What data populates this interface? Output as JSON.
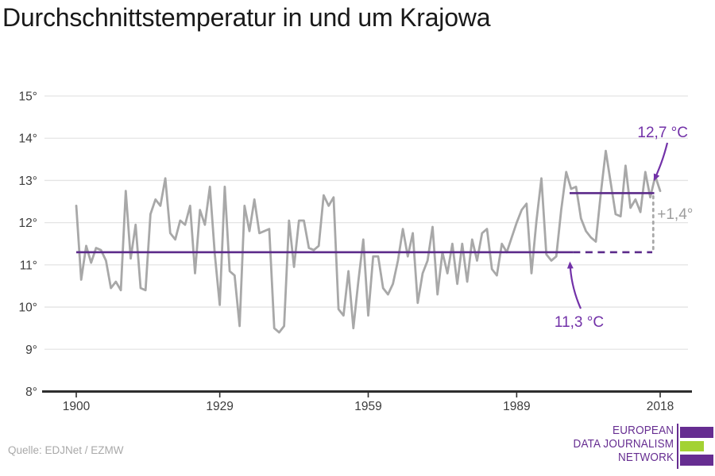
{
  "title": "Durchschnittstemperatur in und um Krajowa",
  "source": "Quelle: EDJNet / EZMW",
  "logo": {
    "line1": "EUROPEAN",
    "line2": "DATA JOURNALISM",
    "line3": "NETWORK"
  },
  "colors": {
    "series_line": "#a8a8a8",
    "mean_line": "#5b2a8a",
    "annotation_text": "#7231a8",
    "delta_text": "#9d9d9d",
    "delta_connector": "#a8a8a8",
    "grid": "#e4e4e4",
    "axis": "#2e2e2e",
    "tick_text": "#3c3c3c",
    "title_text": "#191919",
    "source_text": "#a9a9a9",
    "logo_purple": "#662d91",
    "logo_green": "#a3d233"
  },
  "chart_data": {
    "type": "line",
    "title": "Durchschnittstemperatur in und um Krajowa",
    "xlabel": "",
    "ylabel": "",
    "unit": "°C",
    "grid": "horizontal",
    "legend_position": "none",
    "ylim": [
      8,
      15
    ],
    "x_start_year": 1900,
    "x_end_year": 2018,
    "x_tick_years": [
      1900,
      1929,
      1959,
      1989,
      2018
    ],
    "x_tick_labels": [
      "1900",
      "1929",
      "1959",
      "1989",
      "2018"
    ],
    "y_tick_values": [
      15,
      14,
      13,
      12,
      11,
      10,
      9,
      8
    ],
    "y_tick_labels": [
      "15°",
      "14°",
      "13°",
      "12°",
      "11°",
      "10°",
      "9°",
      "8°"
    ],
    "values": [
      12.4,
      10.65,
      11.45,
      11.05,
      11.4,
      11.35,
      11.1,
      10.45,
      10.6,
      10.4,
      12.75,
      11.15,
      11.95,
      10.45,
      10.4,
      12.2,
      12.55,
      12.4,
      13.05,
      11.75,
      11.6,
      12.05,
      11.95,
      12.4,
      10.8,
      12.3,
      11.95,
      12.85,
      11.25,
      10.05,
      12.85,
      10.85,
      10.75,
      9.55,
      12.4,
      11.8,
      12.55,
      11.75,
      11.8,
      11.85,
      9.5,
      9.4,
      9.55,
      12.05,
      10.95,
      12.05,
      12.05,
      11.4,
      11.35,
      11.45,
      12.65,
      12.4,
      12.6,
      9.95,
      9.8,
      10.85,
      9.5,
      10.6,
      11.6,
      9.8,
      11.2,
      11.2,
      10.45,
      10.3,
      10.55,
      11.1,
      11.85,
      11.2,
      11.75,
      10.1,
      10.8,
      11.1,
      11.9,
      10.3,
      11.3,
      10.8,
      11.5,
      10.55,
      11.5,
      10.6,
      11.6,
      11.1,
      11.75,
      11.85,
      10.9,
      10.75,
      11.5,
      11.3,
      11.65,
      12.0,
      12.3,
      12.45,
      10.8,
      12.05,
      13.05,
      11.25,
      11.1,
      11.2,
      12.3,
      13.2,
      12.8,
      12.85,
      12.1,
      11.8,
      11.65,
      11.55,
      12.7,
      13.7,
      12.95,
      12.2,
      12.15,
      13.35,
      12.35,
      12.55,
      12.25,
      13.2,
      12.6,
      13.1,
      12.75
    ],
    "annotations": {
      "period1_mean": {
        "label": "11,3 °C",
        "value": 11.3,
        "year_from": 1900,
        "year_to": 2000.4,
        "dashed_extension_to": 2016.4
      },
      "period2_mean": {
        "label": "12,7 °C",
        "value": 12.7,
        "year_from": 1999.7,
        "year_to": 2016.8
      },
      "delta": {
        "label": "+1,4°",
        "at_year": 2016.6
      }
    }
  }
}
